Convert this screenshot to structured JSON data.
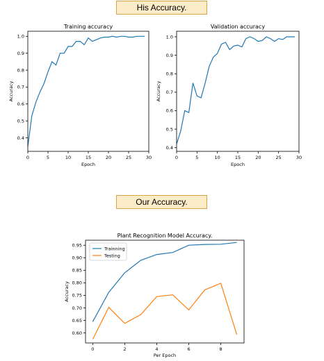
{
  "banners": {
    "his": "His Accuracy.",
    "ours": "Our Accuracy."
  },
  "colors": {
    "series1": "#1f77b4",
    "series2": "#ff7f0e",
    "banner_bg": "#fdecc8",
    "banner_border": "#d9a441"
  },
  "chart_data": [
    {
      "type": "line",
      "title": "Training accuracy",
      "xlabel": "Epoch",
      "ylabel": "Accuracy",
      "xlim": [
        0,
        30
      ],
      "ylim": [
        0.32,
        1.03
      ],
      "xticks": [
        "0",
        "5",
        "10",
        "15",
        "20",
        "25",
        "30"
      ],
      "yticks": [
        "0.4",
        "0.5",
        "0.6",
        "0.7",
        "0.8",
        "0.9",
        "1.0"
      ],
      "grid": false,
      "series": [
        {
          "x": [
            0,
            1,
            2,
            3,
            4,
            5,
            6,
            7,
            8,
            9,
            10,
            11,
            12,
            13,
            14,
            15,
            16,
            17,
            18,
            19,
            20,
            21,
            22,
            23,
            24,
            25,
            26,
            27,
            28,
            29
          ],
          "values": [
            0.35,
            0.53,
            0.61,
            0.67,
            0.72,
            0.79,
            0.85,
            0.83,
            0.9,
            0.9,
            0.94,
            0.94,
            0.97,
            0.97,
            0.95,
            0.99,
            0.97,
            0.98,
            0.99,
            0.995,
            0.995,
            1.0,
            0.995,
            1.0,
            1.0,
            0.995,
            0.995,
            1.0,
            1.0,
            1.0
          ]
        }
      ]
    },
    {
      "type": "line",
      "title": "Validation accuracy",
      "xlabel": "Epoch",
      "ylabel": "Accuracy",
      "xlim": [
        0,
        30
      ],
      "ylim": [
        0.38,
        1.03
      ],
      "xticks": [
        "0",
        "5",
        "10",
        "15",
        "20",
        "25",
        "30"
      ],
      "yticks": [
        "0.4",
        "0.5",
        "0.6",
        "0.7",
        "0.8",
        "0.9",
        "1.0"
      ],
      "grid": false,
      "series": [
        {
          "x": [
            0,
            1,
            2,
            3,
            4,
            5,
            6,
            7,
            8,
            9,
            10,
            11,
            12,
            13,
            14,
            15,
            16,
            17,
            18,
            19,
            20,
            21,
            22,
            23,
            24,
            25,
            26,
            27,
            28,
            29
          ],
          "values": [
            0.42,
            0.49,
            0.6,
            0.59,
            0.75,
            0.68,
            0.67,
            0.75,
            0.84,
            0.89,
            0.91,
            0.96,
            0.97,
            0.93,
            0.95,
            0.955,
            0.945,
            0.99,
            1.0,
            0.99,
            0.975,
            0.98,
            1.0,
            0.99,
            0.975,
            0.99,
            0.985,
            1.0,
            1.0,
            1.0
          ]
        }
      ]
    },
    {
      "type": "line",
      "title": "Plant Recognition Model Accuracy.",
      "xlabel": "Per Epoch",
      "ylabel": "Accuracy",
      "xlim": [
        -0.45,
        9.45
      ],
      "ylim": [
        0.56,
        0.97
      ],
      "xticks": [
        "0",
        "2",
        "4",
        "6",
        "8"
      ],
      "yticks": [
        "0.60",
        "0.65",
        "0.70",
        "0.75",
        "0.80",
        "0.85",
        "0.90",
        "0.95"
      ],
      "grid": false,
      "legend": "top-left",
      "series": [
        {
          "name": "Trainning",
          "x": [
            0,
            1,
            2,
            3,
            4,
            5,
            6,
            7,
            8,
            9
          ],
          "values": [
            0.645,
            0.762,
            0.84,
            0.89,
            0.913,
            0.921,
            0.95,
            0.953,
            0.954,
            0.961
          ]
        },
        {
          "name": "Testing",
          "x": [
            0,
            1,
            2,
            3,
            4,
            5,
            6,
            7,
            8,
            9
          ],
          "values": [
            0.575,
            0.702,
            0.638,
            0.673,
            0.745,
            0.752,
            0.692,
            0.772,
            0.798,
            0.593
          ]
        }
      ]
    }
  ]
}
